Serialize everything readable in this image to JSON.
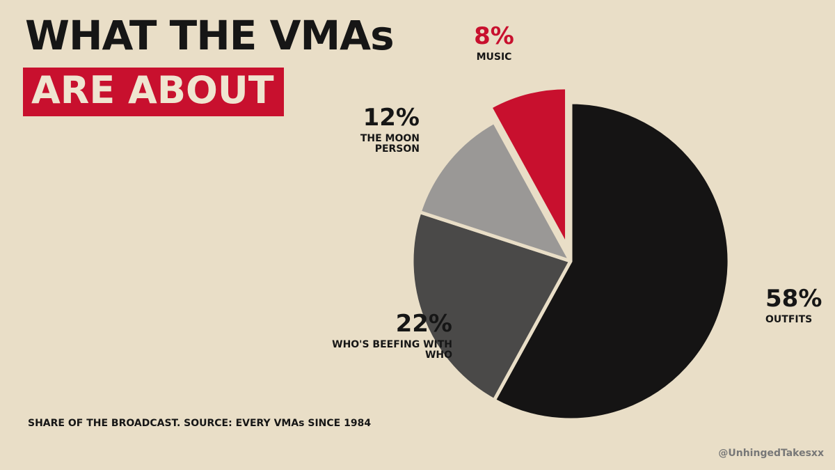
{
  "chart_data": {
    "type": "pie",
    "title": "WHAT THE VMAs",
    "title_highlight": "ARE ABOUT",
    "note": "SHARE OF THE BROADCAST. SOURCE: EVERY VMAs SINCE 1984",
    "credit": "@UnhingedTakesxx",
    "categories": [
      "OUTFITS",
      "WHO'S BEEFING WITH WHO",
      "THE MOON PERSON",
      "MUSIC"
    ],
    "values": [
      58,
      22,
      12,
      8
    ],
    "value_labels": [
      "58%",
      "22%",
      "12%",
      "8%"
    ],
    "colors": [
      "#151414",
      "#4a4948",
      "#9a9896",
      "#c8102e"
    ],
    "explode": [
      false,
      false,
      false,
      true
    ]
  }
}
